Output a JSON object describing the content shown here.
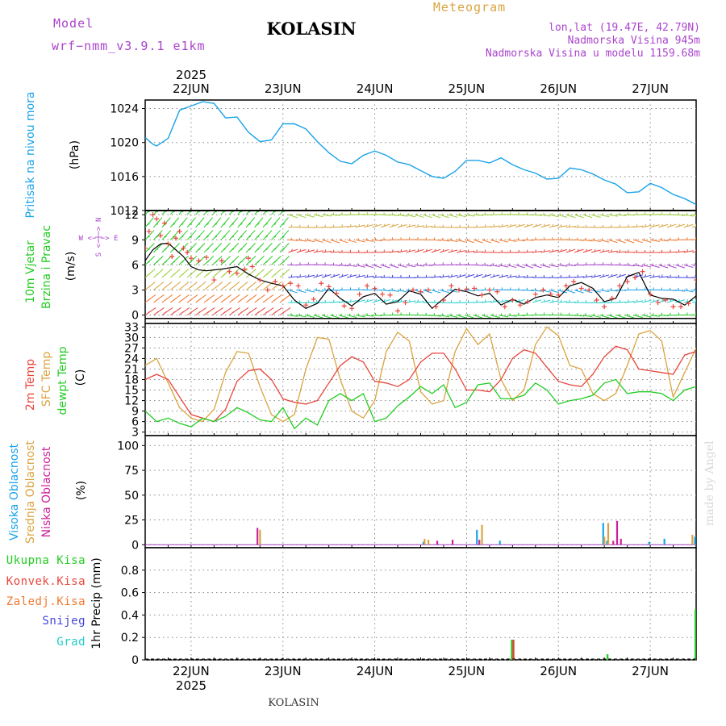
{
  "header": {
    "model_label": "Model",
    "model_name": "wrf−nmm_v3.9.1  e1km",
    "station": "KOLASIN",
    "product": "Meteogram",
    "coords": "lon,lat (19.47E, 42.79N)",
    "elevation": "Nadmorska Visina 945m",
    "model_elevation": "Nadmorska Visina u modelu 1159.68m",
    "footer_station": "KOLASIN",
    "watermark": "made by Angel"
  },
  "colors": {
    "pressure": "#1aa3e8",
    "temp2m": "#e8453c",
    "sfc_temp": "#d9a441",
    "dewpoint": "#22cc22",
    "wind_speed_line": "#000000",
    "wind_gust_marker": "#e8453c",
    "high_cloud": "#1aa3e8",
    "mid_cloud": "#d9a441",
    "low_cloud": "#cc2299",
    "total_precip": "#22cc22",
    "conv_precip": "#e8453c",
    "freezing_precip": "#f07a30",
    "snow": "#4444dd",
    "hail": "#22cccc",
    "wind_label": "#22cc22",
    "dir_label": "#aa44cc"
  },
  "time_axis": {
    "year": "2025",
    "days": [
      "22JUN",
      "23JUN",
      "24JUN",
      "25JUN",
      "26JUN",
      "27JUN"
    ]
  },
  "chart_data": [
    {
      "id": "pressure",
      "type": "line",
      "ylabel_lines": [
        "Pritisak na nivou mora"
      ],
      "unit": "(hPa)",
      "ylim": [
        1012,
        1025
      ],
      "yticks": [
        1012,
        1016,
        1020,
        1024
      ],
      "grid": true,
      "x_hours": [
        0,
        2,
        3,
        6,
        9,
        12,
        15,
        18,
        21,
        24,
        26,
        27,
        30,
        33,
        36,
        39,
        42,
        45,
        48,
        51,
        54,
        57,
        60,
        63,
        66,
        69,
        72,
        75,
        78,
        81,
        84,
        87,
        90,
        93,
        96,
        99,
        102,
        105,
        108,
        111,
        114,
        117,
        120,
        123,
        126,
        129,
        132,
        135,
        138,
        141,
        144
      ],
      "values": [
        1020.6,
        1019.8,
        1019.6,
        1020.5,
        1023.8,
        1024.3,
        1024.8,
        1024.6,
        1022.9,
        1023.0,
        1021.8,
        1021.2,
        1020.1,
        1020.3,
        1022.2,
        1022.2,
        1021.6,
        1020.1,
        1018.8,
        1017.8,
        1017.5,
        1018.5,
        1019.0,
        1018.5,
        1017.7,
        1017.4,
        1016.7,
        1016.0,
        1015.8,
        1016.6,
        1017.9,
        1017.9,
        1017.6,
        1018.2,
        1017.4,
        1016.8,
        1016.4,
        1015.7,
        1015.8,
        1017.0,
        1016.8,
        1016.3,
        1015.6,
        1015.1,
        1014.1,
        1014.2,
        1015.2,
        1014.7,
        1013.9,
        1013.4,
        1012.7
      ]
    },
    {
      "id": "wind",
      "type": "line",
      "ylabel_lines": [
        "10m Vjetar",
        "Brzina i Pravac"
      ],
      "unit": "(m/s)",
      "direction_label": "W <−|−> E",
      "direction_label_ns": "S <−|−> N",
      "ylim": [
        -1,
        12.5
      ],
      "yticks": [
        0,
        3,
        6,
        9,
        12
      ],
      "grid": true,
      "series": [
        {
          "name": "speed",
          "x_hours": [
            0,
            2,
            4,
            6,
            8,
            10,
            12,
            14,
            16,
            18,
            20,
            24,
            27,
            30,
            33,
            36,
            39,
            42,
            45,
            48,
            51,
            54,
            57,
            60,
            63,
            66,
            69,
            72,
            75,
            78,
            81,
            84,
            87,
            90,
            93,
            96,
            99,
            102,
            105,
            108,
            111,
            114,
            117,
            120,
            123,
            126,
            129,
            132,
            135,
            138,
            141,
            144
          ],
          "values": [
            6.5,
            7.8,
            8.5,
            8.6,
            7.8,
            7.0,
            5.8,
            5.4,
            5.3,
            5.4,
            5.5,
            5.8,
            4.9,
            4.2,
            3.8,
            3.5,
            1.8,
            0.8,
            1.4,
            3.2,
            2.0,
            1.1,
            2.2,
            2.6,
            1.3,
            1.6,
            2.9,
            2.5,
            0.8,
            2.0,
            3.1,
            2.8,
            2.3,
            2.6,
            1.2,
            1.9,
            1.3,
            2.1,
            2.4,
            2.1,
            3.5,
            3.9,
            3.2,
            1.6,
            2.0,
            4.6,
            5.1,
            2.4,
            2.0,
            1.9,
            1.2,
            2.3
          ]
        },
        {
          "name": "gust",
          "x_hours": [
            0,
            1,
            2,
            3,
            4,
            5,
            6,
            7,
            8,
            9,
            10,
            11,
            12,
            14,
            16,
            18,
            20,
            22,
            24,
            26,
            27,
            28,
            30,
            32,
            34,
            36,
            38,
            40,
            42,
            44,
            46,
            48,
            50,
            52,
            54,
            56,
            58,
            60,
            62,
            64,
            66,
            68,
            70,
            72,
            74,
            76,
            78,
            80,
            82,
            84,
            86,
            88,
            90,
            92,
            94,
            96,
            98,
            100,
            102,
            104,
            106,
            108,
            110,
            112,
            114,
            116,
            118,
            120,
            122,
            124,
            126,
            128,
            130,
            132,
            134,
            136,
            138,
            140,
            142,
            144
          ],
          "values": [
            8.0,
            10.0,
            12.0,
            11.5,
            9.5,
            11.0,
            8.5,
            7.0,
            9.2,
            10.0,
            8.0,
            7.5,
            6.8,
            6.5,
            6.9,
            4.2,
            6.5,
            5.2,
            5.0,
            5.5,
            6.8,
            5.8,
            4.2,
            3.0,
            4.0,
            3.5,
            3.8,
            3.5,
            1.2,
            1.9,
            3.8,
            3.4,
            2.6,
            1.1,
            0.8,
            2.5,
            3.5,
            3.2,
            2.5,
            2.4,
            0.5,
            1.5,
            3.0,
            2.8,
            3.0,
            1.0,
            1.8,
            3.5,
            3.0,
            3.1,
            3.2,
            2.4,
            3.0,
            2.8,
            1.0,
            1.8,
            1.2,
            1.6,
            2.5,
            3.0,
            2.5,
            2.4,
            3.5,
            4.0,
            3.2,
            3.0,
            1.8,
            1.0,
            2.0,
            3.5,
            4.0,
            4.5,
            5.2,
            2.5,
            1.5,
            1.8,
            1.0,
            1.0,
            1.4,
            4.2
          ]
        }
      ]
    },
    {
      "id": "temperature",
      "type": "line",
      "ylabel_lines": [
        "2m Temp",
        "SFC Temp",
        "dewpt Temp"
      ],
      "unit": "(C)",
      "ylim": [
        2,
        34
      ],
      "yticks": [
        3,
        6,
        9,
        12,
        15,
        18,
        21,
        24,
        27,
        30,
        33
      ],
      "grid": true,
      "series": [
        {
          "name": "2m Temp",
          "x_hours": [
            0,
            3,
            6,
            9,
            12,
            15,
            18,
            21,
            24,
            27,
            30,
            33,
            36,
            39,
            42,
            45,
            48,
            51,
            54,
            57,
            60,
            63,
            66,
            69,
            72,
            75,
            78,
            81,
            84,
            87,
            90,
            93,
            96,
            99,
            102,
            105,
            108,
            111,
            114,
            117,
            120,
            123,
            126,
            129,
            132,
            135,
            138,
            141,
            144
          ],
          "values": [
            18.0,
            19.5,
            18.0,
            13.0,
            8.0,
            7.0,
            6.0,
            9.5,
            17.5,
            20.5,
            21.0,
            18.0,
            12.5,
            11.5,
            11.0,
            12.0,
            17.0,
            22.0,
            24.5,
            23.0,
            17.5,
            17.0,
            16.0,
            18.0,
            23.0,
            25.5,
            25.5,
            21.0,
            15.0,
            15.0,
            14.5,
            18.0,
            24.0,
            26.5,
            25.5,
            21.5,
            17.5,
            16.5,
            16.0,
            19.5,
            24.5,
            27.5,
            26.5,
            21.0,
            20.5,
            20.0,
            19.5,
            25.0,
            26.0
          ]
        },
        {
          "name": "SFC Temp",
          "x_hours": [
            0,
            3,
            6,
            9,
            12,
            15,
            18,
            21,
            24,
            27,
            30,
            33,
            36,
            39,
            42,
            45,
            48,
            51,
            54,
            57,
            60,
            63,
            66,
            69,
            72,
            75,
            78,
            81,
            84,
            87,
            90,
            93,
            96,
            99,
            102,
            105,
            108,
            111,
            114,
            117,
            120,
            123,
            126,
            129,
            132,
            135,
            138,
            141,
            144
          ],
          "values": [
            22.0,
            24.0,
            17.0,
            10.0,
            7.0,
            6.0,
            9.5,
            20.0,
            26.0,
            25.5,
            16.0,
            8.0,
            6.0,
            8.0,
            21.0,
            30.0,
            29.5,
            18.0,
            9.0,
            7.0,
            12.0,
            26.0,
            31.5,
            29.0,
            14.5,
            11.0,
            12.0,
            26.0,
            32.5,
            28.0,
            31.0,
            18.0,
            12.0,
            15.0,
            28.0,
            33.0,
            30.5,
            22.0,
            21.0,
            14.0,
            12.0,
            14.0,
            22.0,
            31.0,
            32.0,
            29.0,
            13.0,
            20.0,
            27.0
          ]
        },
        {
          "name": "dewpt Temp",
          "x_hours": [
            0,
            3,
            6,
            9,
            12,
            15,
            18,
            21,
            24,
            27,
            30,
            33,
            36,
            39,
            42,
            45,
            48,
            51,
            54,
            57,
            60,
            63,
            66,
            69,
            72,
            75,
            78,
            81,
            84,
            87,
            90,
            93,
            96,
            99,
            102,
            105,
            108,
            111,
            114,
            117,
            120,
            123,
            126,
            129,
            132,
            135,
            138,
            141,
            144
          ],
          "values": [
            9.0,
            6.0,
            7.0,
            5.5,
            4.5,
            7.0,
            6.0,
            7.5,
            10.0,
            8.5,
            6.5,
            6.0,
            10.0,
            4.0,
            7.0,
            5.0,
            12.0,
            14.0,
            12.0,
            14.0,
            6.0,
            7.0,
            10.5,
            13.0,
            16.0,
            14.0,
            16.5,
            10.0,
            11.5,
            16.5,
            17.0,
            12.5,
            12.5,
            13.5,
            17.0,
            15.0,
            11.0,
            12.0,
            12.5,
            13.5,
            17.0,
            18.0,
            14.0,
            14.5,
            14.5,
            14.0,
            12.0,
            15.0,
            16.0
          ]
        }
      ]
    },
    {
      "id": "cloud",
      "type": "bar",
      "ylabel_lines": [
        "Visoka Oblacnost",
        "Srednja Oblacnost",
        "Niska Oblacnost"
      ],
      "unit": "(%)",
      "ylim": [
        -3,
        110
      ],
      "yticks": [
        0,
        25,
        50,
        75,
        100
      ],
      "grid": true,
      "series": [
        {
          "name": "Visoka Oblacnost",
          "x_hours": [
            73,
            87,
            93,
            120,
            121,
            132,
            136,
            144
          ],
          "values": [
            3,
            15,
            4,
            22,
            4,
            3,
            6,
            8
          ]
        },
        {
          "name": "Srednja Oblacnost",
          "x_hours": [
            30,
            73,
            74,
            88,
            120,
            121,
            143
          ],
          "values": [
            15,
            6,
            5,
            20,
            8,
            22,
            10
          ]
        },
        {
          "name": "Niska Oblacnost",
          "x_hours": [
            29,
            76,
            80,
            87,
            122,
            123,
            124,
            144
          ],
          "values": [
            17,
            4,
            5,
            5,
            4,
            24,
            6,
            3
          ]
        }
      ]
    },
    {
      "id": "precip",
      "type": "bar",
      "ylabel_lines": [
        "1hr Precip (mm)"
      ],
      "legend": [
        "Ukupna Kisa",
        "Konvek.Kisa",
        "Zaledj.Kisa",
        "Snijeg",
        "Grad"
      ],
      "ylim": [
        0,
        1.0
      ],
      "yticks": [
        0,
        0.2,
        0.4,
        0.6,
        0.8
      ],
      "grid": true,
      "series": [
        {
          "name": "Ukupna Kisa",
          "x_hours": [
            96,
            121,
            144
          ],
          "values": [
            0.18,
            0.05,
            0.45
          ]
        },
        {
          "name": "Konvek.Kisa",
          "x_hours": [
            96,
            144
          ],
          "values": [
            0.18,
            0.45
          ]
        }
      ]
    }
  ]
}
